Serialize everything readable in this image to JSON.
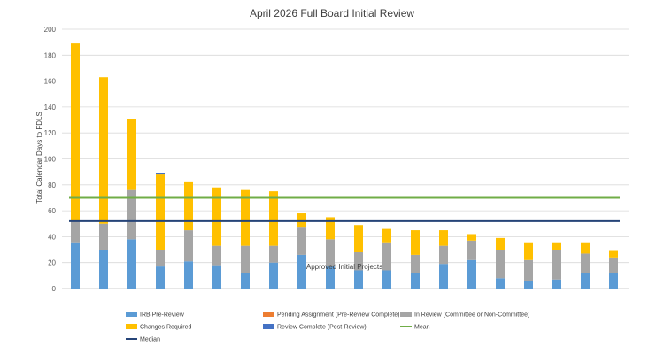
{
  "chart_data": {
    "type": "bar",
    "stacked": true,
    "title": "April 2026 Full Board Initial Review",
    "ylabel": "Total Calendar Days to FDLS",
    "xlabel": "",
    "ylim": [
      0,
      200
    ],
    "yticks": [
      0,
      20,
      40,
      60,
      80,
      100,
      120,
      140,
      160,
      180,
      200
    ],
    "grid": true,
    "legend_position": "bottom",
    "categories": [
      "",
      "",
      "",
      "",
      "",
      "",
      "",
      "",
      "",
      "",
      "",
      "",
      "",
      "",
      "",
      "",
      "",
      "",
      "",
      ""
    ],
    "series": [
      {
        "name": "IRB Pre-Review",
        "color": "#5B9BD5",
        "values": [
          35,
          30,
          38,
          17,
          21,
          18,
          12,
          20,
          26,
          17,
          14,
          14,
          12,
          19,
          22,
          8,
          6,
          7,
          12,
          12
        ]
      },
      {
        "name": "Pending Assignment (Pre-Review Complete)",
        "color": "#ED7D31",
        "values": [
          0,
          0,
          0,
          0,
          0,
          0,
          0,
          0,
          0,
          0,
          0,
          0,
          0,
          0,
          0,
          0,
          0,
          0,
          0,
          0
        ]
      },
      {
        "name": "In Review (Committee or Non-Committee)",
        "color": "#A5A5A5",
        "values": [
          17,
          20,
          38,
          13,
          24,
          15,
          21,
          13,
          21,
          21,
          14,
          21,
          14,
          14,
          15,
          22,
          16,
          23,
          15,
          12
        ]
      },
      {
        "name": "Changes Required",
        "color": "#FFC000",
        "values": [
          137,
          113,
          55,
          58,
          37,
          45,
          43,
          42,
          11,
          17,
          21,
          11,
          19,
          12,
          5,
          9,
          13,
          5,
          8,
          5
        ]
      },
      {
        "name": "Review Complete (Post-Review)",
        "color": "#4472C4",
        "values": [
          0,
          0,
          0,
          1,
          0,
          0,
          0,
          0,
          0,
          0,
          0,
          0,
          0,
          0,
          0,
          0,
          0,
          0,
          0,
          0
        ]
      }
    ],
    "reference_lines": [
      {
        "name": "Mean",
        "value": 70,
        "color": "#70AD47"
      },
      {
        "name": "Median",
        "value": 52,
        "color": "#264478"
      }
    ],
    "annotations": [
      {
        "text": "Approved Initial Projects",
        "x_index": 9.5,
        "y": 17
      }
    ]
  }
}
